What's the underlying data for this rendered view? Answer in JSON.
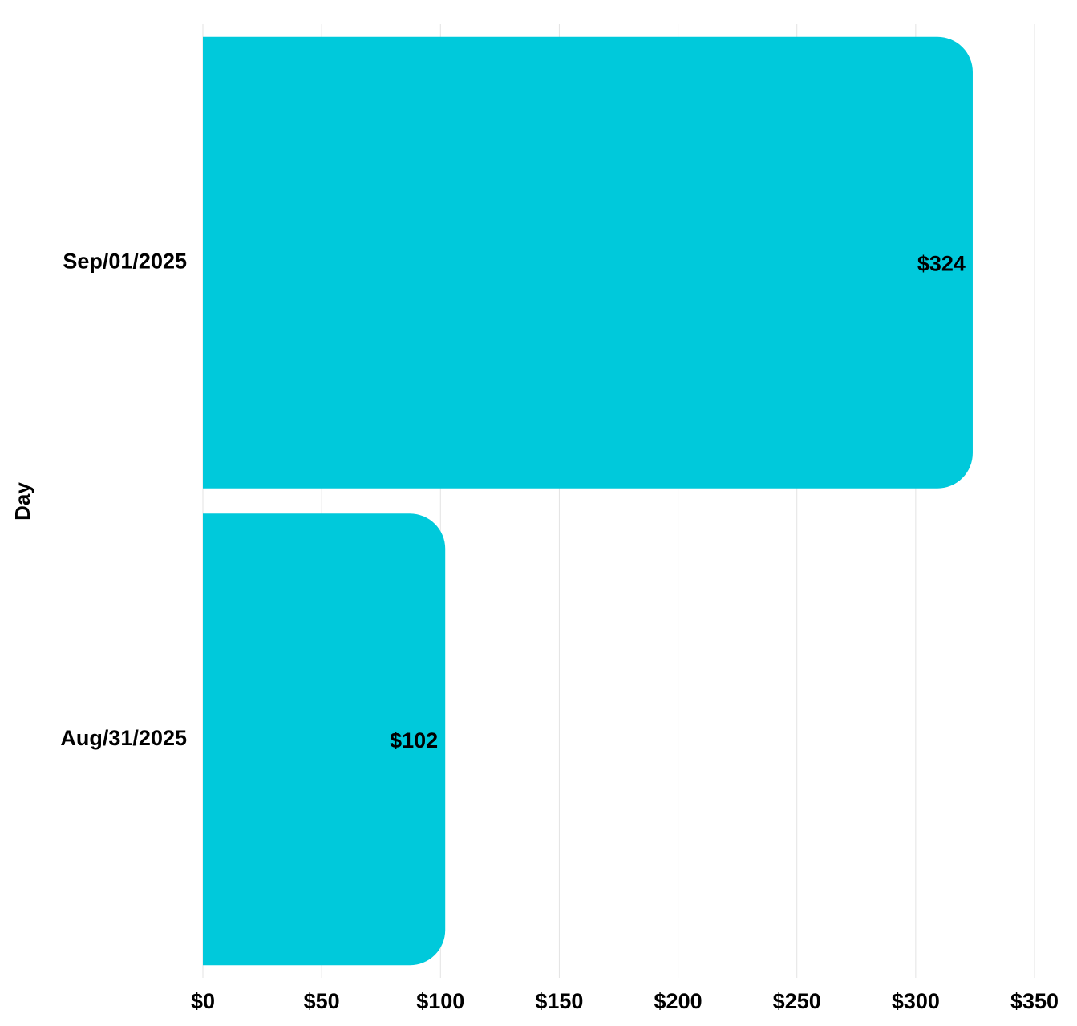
{
  "chart_data": {
    "type": "bar",
    "orientation": "horizontal",
    "categories": [
      "Sep/01/2025",
      "Aug/31/2025"
    ],
    "values": [
      324,
      102
    ],
    "data_labels": [
      "$324",
      "$102"
    ],
    "xlabel": "",
    "ylabel": "Day",
    "xlim": [
      0,
      350
    ],
    "x_ticks": [
      0,
      50,
      100,
      150,
      200,
      250,
      300,
      350
    ],
    "x_tick_labels": [
      "$0",
      "$50",
      "$100",
      "$150",
      "$200",
      "$250",
      "$300",
      "$350"
    ],
    "grid": true,
    "legend": "none",
    "bar_color": "#00c9db",
    "grid_color": "#e3e3e3"
  }
}
